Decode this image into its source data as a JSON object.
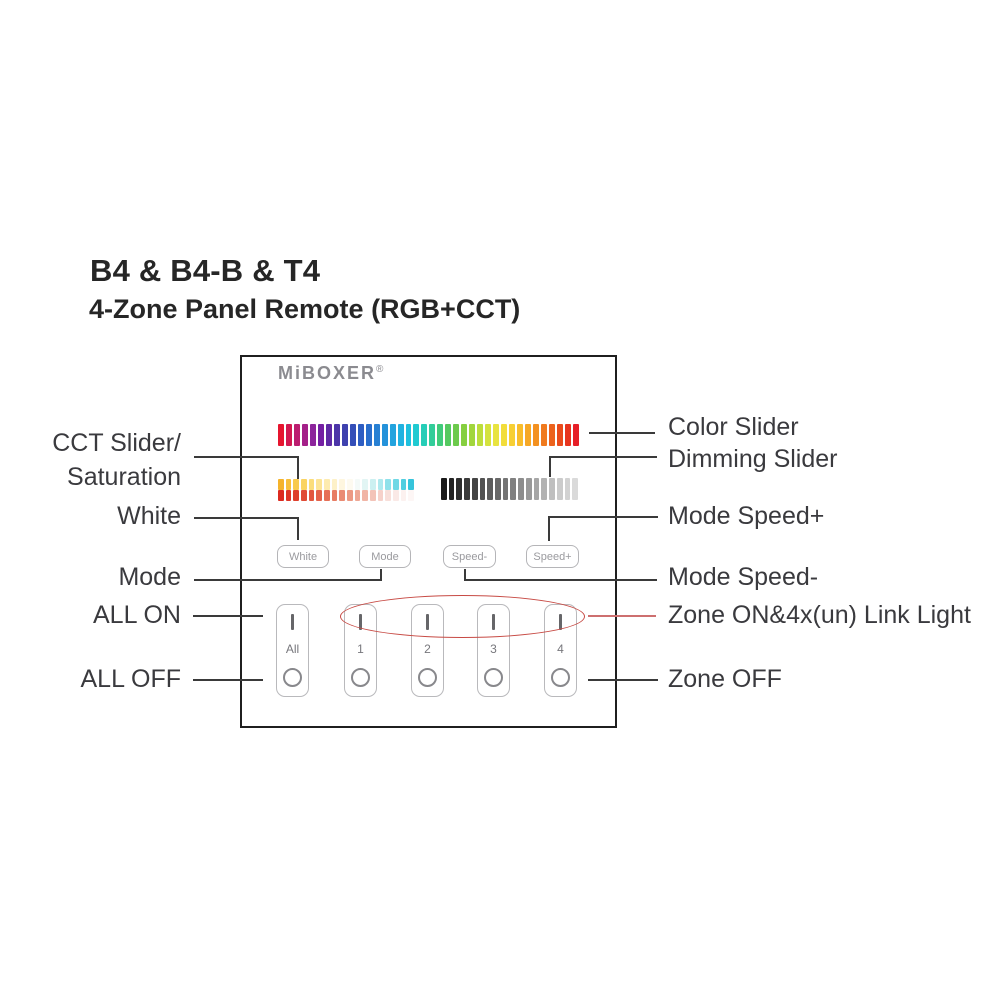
{
  "header": {
    "title": "B4 & B4-B & T4",
    "subtitle": "4-Zone Panel Remote (RGB+CCT)"
  },
  "panel": {
    "logo": "MiBOXER",
    "logo_reg": "®",
    "buttons": [
      {
        "label": "White"
      },
      {
        "label": "Mode"
      },
      {
        "label": "Speed-"
      },
      {
        "label": "Speed+"
      }
    ],
    "zones": [
      {
        "label": "All"
      },
      {
        "label": "1"
      },
      {
        "label": "2"
      },
      {
        "label": "3"
      },
      {
        "label": "4"
      }
    ],
    "zone_on_symbol": "I",
    "zone_off_symbol": "O",
    "sliders": {
      "color": {
        "name": "Color Slider",
        "colors": [
          "#e6152f",
          "#d21950",
          "#bc1d6f",
          "#a42089",
          "#8c249c",
          "#741fa3",
          "#5f2aa5",
          "#4c35a8",
          "#3e41ae",
          "#344eb8",
          "#2e5dc2",
          "#296ecc",
          "#2780d3",
          "#2592da",
          "#23a3de",
          "#21b2e0",
          "#1fc0dd",
          "#20cad1",
          "#26cdb7",
          "#32cd99",
          "#41cb7b",
          "#55c960",
          "#6cca4c",
          "#86cf40",
          "#a1d63c",
          "#bcdd3c",
          "#d4e23e",
          "#e8e340",
          "#f2dd3b",
          "#f7cf33",
          "#f8bd2c",
          "#f6a826",
          "#f39121",
          "#f07a1e",
          "#ec621c",
          "#e94b1c",
          "#e7351e",
          "#e61f27"
        ]
      },
      "cct": {
        "name": "CCT Slider",
        "colors": [
          "#f5b32b",
          "#f7bf3a",
          "#f8ca4d",
          "#fad463",
          "#fbdd7b",
          "#fce495",
          "#fdebaf",
          "#fdf1c8",
          "#fef6df",
          "#fdfaf0",
          "#f4faf8",
          "#e2f5f4",
          "#cbf0f1",
          "#aee9ee",
          "#8fe1ea",
          "#6fd8e5",
          "#50cee0",
          "#36c4db"
        ]
      },
      "saturation": {
        "name": "Saturation Slider",
        "colors": [
          "#dc2a1f",
          "#dd3526",
          "#de402d",
          "#e04b35",
          "#e2573f",
          "#e4634a",
          "#e67057",
          "#e87d64",
          "#ea8b73",
          "#ec9983",
          "#eea794",
          "#f1b5a6",
          "#f3c3b8",
          "#f6d1ca",
          "#f8dfda",
          "#fae9e6",
          "#fcf1ef",
          "#fdf6f5"
        ]
      },
      "dimming": {
        "name": "Dimming Slider",
        "colors": [
          "#191919",
          "#242424",
          "#2f2f2f",
          "#3a3a3a",
          "#454545",
          "#515151",
          "#5c5c5c",
          "#686868",
          "#747474",
          "#808080",
          "#8d8d8d",
          "#999999",
          "#a6a6a6",
          "#b2b2b2",
          "#bfbfbf",
          "#cbcbcb",
          "#d2d2d2",
          "#dadada"
        ]
      }
    }
  },
  "callouts": {
    "left": [
      "CCT Slider/",
      "Saturation",
      "White",
      "Mode",
      "ALL ON",
      "ALL OFF"
    ],
    "right": [
      "Color Slider",
      "Dimming Slider",
      "Mode Speed+",
      "Mode Speed-",
      "Zone ON&4x(un) Link Light",
      "Zone OFF"
    ]
  },
  "colors": {
    "highlight_red": "#c74a44",
    "line": "#3a3a3a"
  }
}
